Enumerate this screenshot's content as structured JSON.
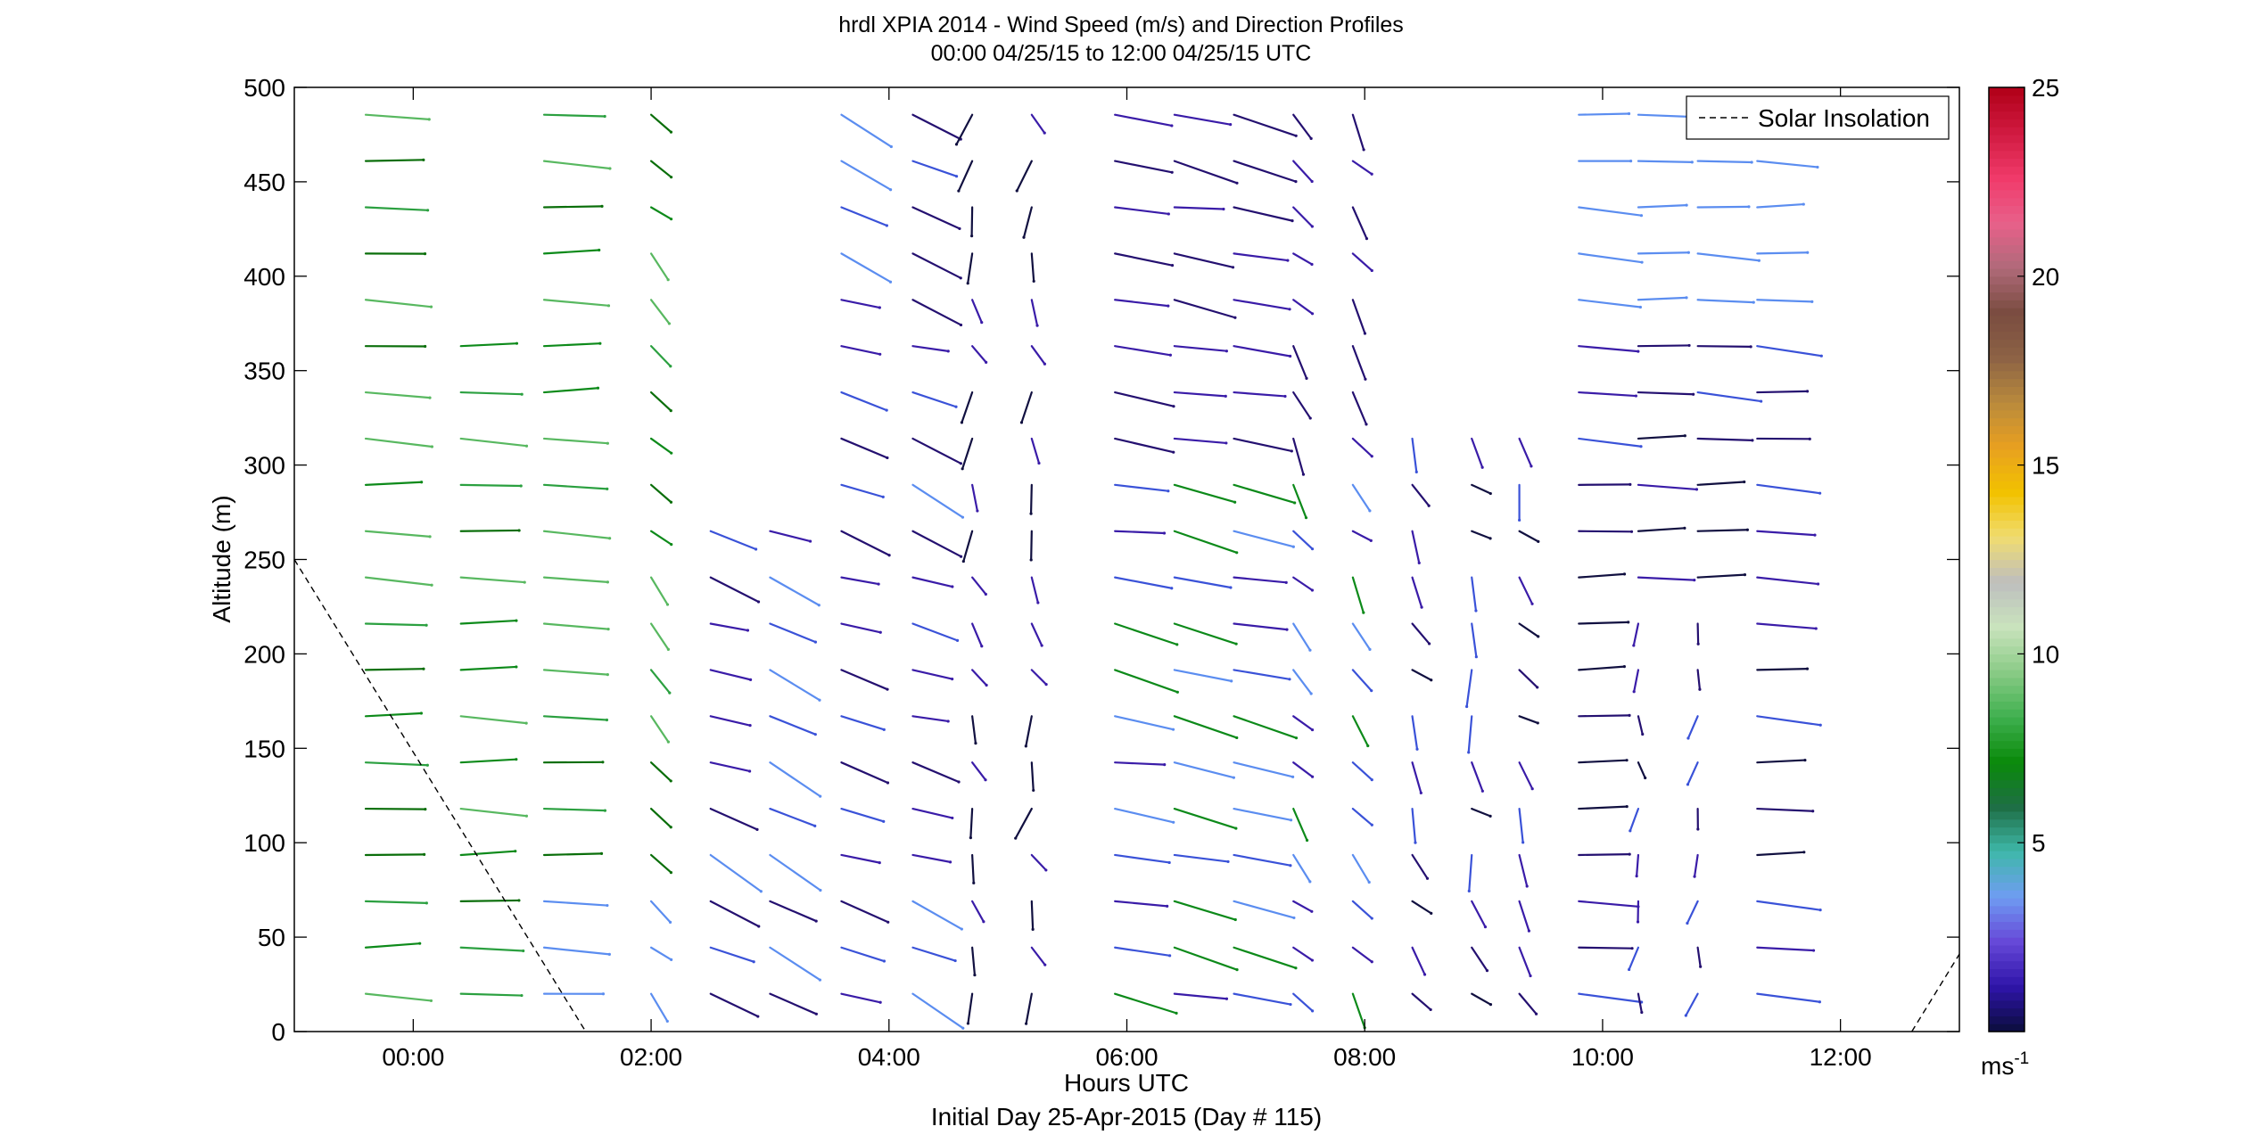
{
  "chart_data": {
    "type": "wind-barb-profile",
    "title": "hrdl XPIA 2014 - Wind Speed (m/s) and Direction Profiles",
    "subtitle": "00:00 04/25/15 to 12:00 04/25/15  UTC",
    "xlabel": "Hours UTC",
    "xlabel2": "Initial Day 25-Apr-2015 (Day # 115)",
    "ylabel": "Altitude (m)",
    "xlim": [
      -1.0,
      13.0
    ],
    "ylim": [
      0,
      500
    ],
    "xticks": [
      0,
      2,
      4,
      6,
      8,
      10,
      12
    ],
    "xtick_labels": [
      "00:00",
      "02:00",
      "04:00",
      "06:00",
      "08:00",
      "10:00",
      "12:00"
    ],
    "yticks": [
      0,
      50,
      100,
      150,
      200,
      250,
      300,
      350,
      400,
      450,
      500
    ],
    "ytick_labels": [
      "0",
      "50",
      "100",
      "150",
      "200",
      "250",
      "300",
      "350",
      "400",
      "450",
      "500"
    ],
    "legend": {
      "entries": [
        "Solar Insolation"
      ],
      "position": "top-right"
    },
    "colorbar": {
      "range": [
        0,
        25
      ],
      "ticks": [
        5,
        10,
        15,
        20,
        25
      ],
      "tick_labels": [
        "5",
        "10",
        "15",
        "20",
        "25"
      ],
      "unit": "ms-1",
      "unit_base": "ms",
      "unit_exp": "-1",
      "colors": [
        "#0b0d3c",
        "#2e14a8",
        "#6648d8",
        "#6f9cf2",
        "#3fb8aa",
        "#1e6e45",
        "#0a8a0a",
        "#3fb04f",
        "#8acb86",
        "#c9e3bd",
        "#bebebe",
        "#f0dc70",
        "#f2c200",
        "#e8a020",
        "#b98a3c",
        "#8c6245",
        "#7a4c40",
        "#b06a7a",
        "#e8608a",
        "#f03a6a",
        "#d01a40",
        "#b00018"
      ]
    },
    "solar_insolation": [
      {
        "x": -1.0,
        "y": 250
      },
      {
        "x": 1.45,
        "y": 0
      },
      {
        "x": 12.6,
        "y": 0
      },
      {
        "x": 13.0,
        "y": 41
      }
    ],
    "series": [
      {
        "name": "Solar Insolation",
        "style": "dashed",
        "color": "#000000"
      }
    ],
    "profile_times_h": [
      -0.4,
      0.4,
      1.1,
      2.0,
      2.5,
      3.0,
      3.6,
      4.2,
      4.7,
      5.2,
      5.9,
      6.4,
      6.9,
      7.4,
      7.9,
      8.4,
      8.9,
      9.3,
      9.8,
      10.3,
      10.8,
      11.3
    ],
    "note": "Each profile is a column of barbs; values list altitude(m), speed(m/s), direction-as-drawn(deg)."
  }
}
